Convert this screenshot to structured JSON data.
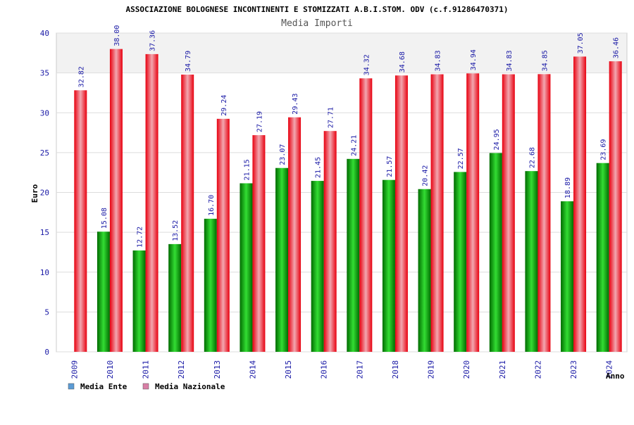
{
  "chart_data": {
    "type": "bar",
    "title": "ASSOCIAZIONE BOLOGNESE INCONTINENTI E STOMIZZATI A.B.I.STOM. ODV (c.f.91286470371)",
    "subtitle": "Media Importi",
    "xlabel": "Anno",
    "ylabel": "Euro",
    "ylim": [
      0,
      40
    ],
    "yticks": [
      0,
      5,
      10,
      15,
      20,
      25,
      30,
      35,
      40
    ],
    "categories": [
      "2009",
      "2010",
      "2011",
      "2012",
      "2013",
      "2014",
      "2015",
      "2016",
      "2017",
      "2018",
      "2019",
      "2020",
      "2021",
      "2022",
      "2023",
      "2024"
    ],
    "series": [
      {
        "name": "Media Ente",
        "legend_color": "#5b9bd5",
        "bar_color": "#00b300",
        "values": [
          null,
          15.08,
          12.72,
          13.52,
          16.7,
          21.15,
          23.07,
          21.45,
          24.21,
          21.57,
          20.42,
          22.57,
          24.95,
          22.68,
          18.89,
          23.69
        ],
        "labels": [
          "",
          "15.08",
          "12.72",
          "13.52",
          "16.70",
          "21.15",
          "23.07",
          "21.45",
          "24.21",
          "21.57",
          "20.42",
          "22.57",
          "24.95",
          "22.68",
          "18.89",
          "23.69"
        ]
      },
      {
        "name": "Media Nazionale",
        "legend_color": "#d97fa6",
        "bar_color": "#e8000f",
        "values": [
          32.82,
          38.0,
          37.36,
          34.79,
          29.24,
          27.19,
          29.43,
          27.71,
          34.32,
          34.68,
          34.83,
          34.94,
          34.83,
          34.85,
          37.05,
          36.46
        ],
        "labels": [
          "32.82",
          "38.00",
          "37.36",
          "34.79",
          "29.24",
          "27.19",
          "29.43",
          "27.71",
          "34.32",
          "34.68",
          "34.83",
          "34.94",
          "34.83",
          "34.85",
          "37.05",
          "36.46"
        ]
      }
    ],
    "grid": true,
    "legend": "bottom-left"
  }
}
